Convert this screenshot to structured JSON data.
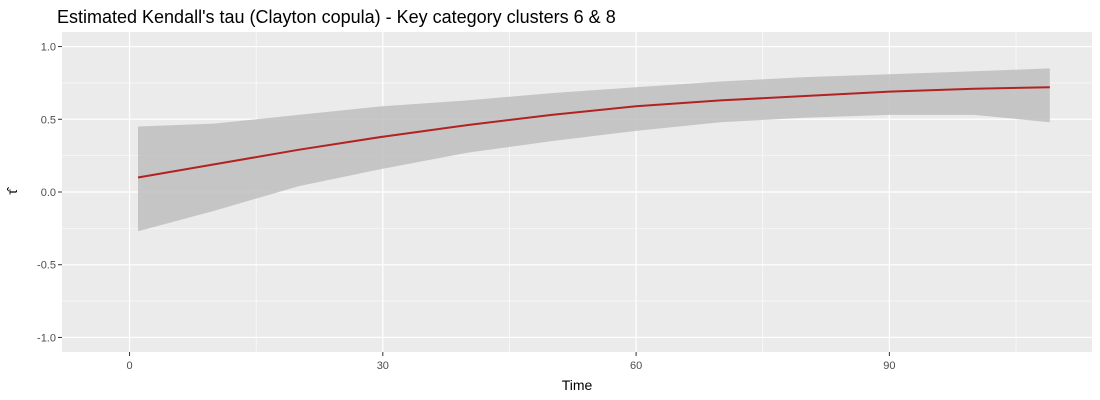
{
  "chart_data": {
    "type": "line",
    "title": "Estimated Kendall's tau (Clayton copula) - Key category clusters 6 & 8",
    "xlabel": "Time",
    "ylabel": "τ̂",
    "xlim": [
      -8,
      114
    ],
    "ylim": [
      -1.1,
      1.1
    ],
    "x_ticks": [
      0,
      30,
      60,
      90
    ],
    "x_tick_labels": [
      "0",
      "30",
      "60",
      "90"
    ],
    "x_minor_ticks": [
      15,
      45,
      75,
      105
    ],
    "y_ticks": [
      -1.0,
      -0.5,
      0.0,
      0.5,
      1.0
    ],
    "y_tick_labels": [
      "-1.0",
      "-0.5",
      "0.0",
      "0.5",
      "1.0"
    ],
    "y_minor_ticks": [
      -0.75,
      -0.25,
      0.25,
      0.75
    ],
    "grid": true,
    "colors": {
      "panel_background": "#EBEBEB",
      "grid_line": "#FFFFFF",
      "ribbon": "#BEBEBE",
      "line": "#B22222",
      "tick_label": "#4D4D4D",
      "tick_mark": "#333333"
    },
    "series": [
      {
        "name": "tau_estimate",
        "x": [
          1,
          10,
          20,
          30,
          40,
          50,
          60,
          70,
          80,
          90,
          100,
          109
        ],
        "y": [
          0.1,
          0.19,
          0.29,
          0.38,
          0.46,
          0.53,
          0.59,
          0.63,
          0.66,
          0.69,
          0.71,
          0.72
        ],
        "lower": [
          -0.27,
          -0.13,
          0.04,
          0.16,
          0.27,
          0.35,
          0.42,
          0.48,
          0.51,
          0.53,
          0.53,
          0.48
        ],
        "upper": [
          0.45,
          0.47,
          0.53,
          0.59,
          0.63,
          0.68,
          0.72,
          0.76,
          0.79,
          0.81,
          0.83,
          0.85
        ]
      }
    ]
  }
}
